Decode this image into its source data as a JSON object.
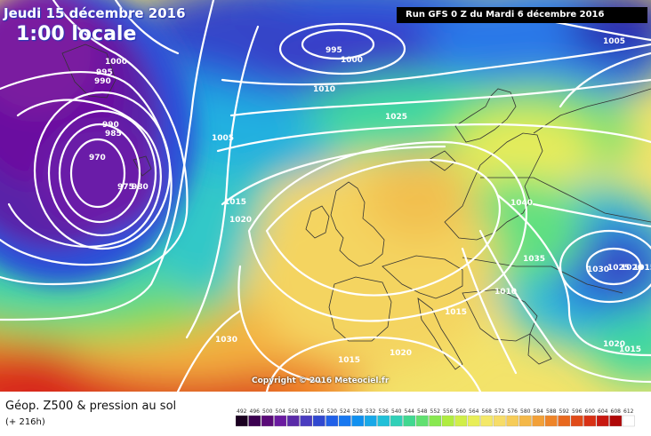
{
  "header": {
    "date_line": "Jeudi 15 décembre 2016",
    "time_line": "1:00 locale",
    "run_info": "Run GFS 0 Z du Mardi 6 décembre 2016"
  },
  "copyright": "Copyright © 2016 Meteociel.fr",
  "footer": {
    "title": "Géop. Z500 & pression au sol",
    "subtitle": "(+ 216h)"
  },
  "isobar_labels": [
    "1000",
    "995",
    "990",
    "990",
    "985",
    "970",
    "975",
    "980",
    "995",
    "1000",
    "1010",
    "1005",
    "1025",
    "1005",
    "1015",
    "1020",
    "1040",
    "1035",
    "1030",
    "1025",
    "1020",
    "1015",
    "1010",
    "1030",
    "1015",
    "1020",
    "1020",
    "1015"
  ],
  "scale": {
    "values": [
      "492",
      "496",
      "500",
      "504",
      "508",
      "512",
      "516",
      "520",
      "524",
      "528",
      "532",
      "536",
      "540",
      "544",
      "548",
      "552",
      "556",
      "560",
      "564",
      "568",
      "572",
      "576",
      "580",
      "584",
      "588",
      "592",
      "596",
      "600",
      "604",
      "608",
      "612"
    ],
    "colors": [
      "#1a0020",
      "#3b0050",
      "#5a0a78",
      "#6a1aa0",
      "#5a2aa8",
      "#4a3cc0",
      "#3048d0",
      "#2060e8",
      "#1878f0",
      "#1090f0",
      "#18a8e8",
      "#20c0d8",
      "#30d0b8",
      "#40d890",
      "#60e070",
      "#88e850",
      "#b0ec40",
      "#d0ee48",
      "#e8ee58",
      "#f4e868",
      "#f6dc68",
      "#f6cc58",
      "#f4b848",
      "#f2a038",
      "#ee8428",
      "#e8681e",
      "#e04a18",
      "#d83014",
      "#c81810",
      "#b00808",
      "#ffffff"
    ]
  }
}
